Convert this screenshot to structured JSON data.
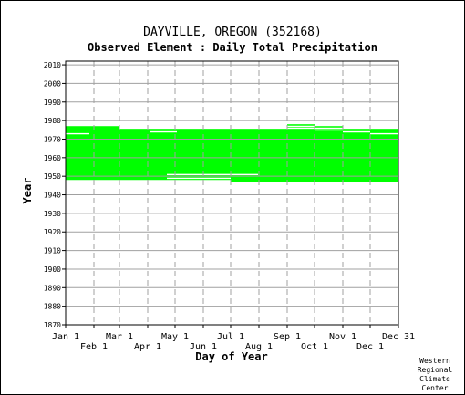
{
  "chart_data": {
    "type": "heatmap",
    "title": "DAYVILLE, OREGON   (352168)",
    "subtitle": "Observed Element : Daily Total Precipitation",
    "xlabel": "Day of Year",
    "ylabel": "Year",
    "x_range": [
      1,
      366
    ],
    "y_range": [
      1870,
      2012
    ],
    "y_ticks": [
      1870,
      1880,
      1890,
      1900,
      1910,
      1920,
      1930,
      1940,
      1950,
      1960,
      1970,
      1980,
      1990,
      2000,
      2010
    ],
    "x_ticks_top_row": [
      {
        "label": "Jan 1",
        "day": 1
      },
      {
        "label": "Mar 1",
        "day": 60
      },
      {
        "label": "May 1",
        "day": 121
      },
      {
        "label": "Jul 1",
        "day": 182
      },
      {
        "label": "Sep 1",
        "day": 244
      },
      {
        "label": "Nov 1",
        "day": 305
      },
      {
        "label": "Dec 31",
        "day": 366
      }
    ],
    "x_ticks_bottom_row": [
      {
        "label": "Feb 1",
        "day": 32
      },
      {
        "label": "Apr 1",
        "day": 91
      },
      {
        "label": "Jun 1",
        "day": 152
      },
      {
        "label": "Aug 1",
        "day": 213
      },
      {
        "label": "Oct 1",
        "day": 274
      },
      {
        "label": "Dec 1",
        "day": 335
      }
    ],
    "gridlines": true,
    "data_color": "#00ff00",
    "coverage": [
      {
        "start_day": 1,
        "end_day": 32,
        "year_from": 1948,
        "year_to": 1977
      },
      {
        "start_day": 32,
        "end_day": 60,
        "year_from": 1948,
        "year_to": 1977
      },
      {
        "start_day": 60,
        "end_day": 91,
        "year_from": 1948,
        "year_to": 1976
      },
      {
        "start_day": 91,
        "end_day": 121,
        "year_from": 1948,
        "year_to": 1976
      },
      {
        "start_day": 121,
        "end_day": 152,
        "year_from": 1948,
        "year_to": 1976
      },
      {
        "start_day": 152,
        "end_day": 182,
        "year_from": 1948,
        "year_to": 1976
      },
      {
        "start_day": 182,
        "end_day": 213,
        "year_from": 1947,
        "year_to": 1976
      },
      {
        "start_day": 213,
        "end_day": 244,
        "year_from": 1947,
        "year_to": 1976
      },
      {
        "start_day": 244,
        "end_day": 274,
        "year_from": 1947,
        "year_to": 1978
      },
      {
        "start_day": 274,
        "end_day": 305,
        "year_from": 1947,
        "year_to": 1977
      },
      {
        "start_day": 305,
        "end_day": 335,
        "year_from": 1947,
        "year_to": 1976
      },
      {
        "start_day": 335,
        "end_day": 366,
        "year_from": 1947,
        "year_to": 1976
      }
    ],
    "missing_segments": [
      {
        "start_day": 1,
        "end_day": 27,
        "year": 1973
      },
      {
        "start_day": 60,
        "end_day": 366,
        "year": 1976
      },
      {
        "start_day": 93,
        "end_day": 123,
        "year": 1974
      },
      {
        "start_day": 274,
        "end_day": 305,
        "year": 1975
      },
      {
        "start_day": 305,
        "end_day": 335,
        "year": 1974
      },
      {
        "start_day": 335,
        "end_day": 366,
        "year": 1973
      },
      {
        "start_day": 244,
        "end_day": 274,
        "year": 1977
      },
      {
        "start_day": 112,
        "end_day": 212,
        "year": 1951
      },
      {
        "start_day": 112,
        "end_day": 182,
        "year": 1949
      }
    ]
  },
  "credit": [
    "Western",
    "Regional",
    "Climate",
    "Center"
  ]
}
